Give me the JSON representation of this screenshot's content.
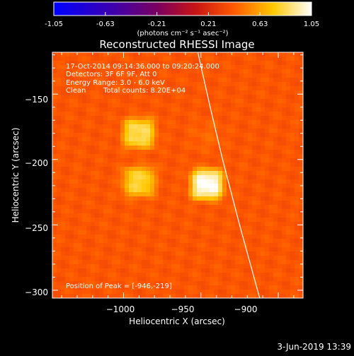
{
  "colorbar": {
    "ticks": [
      "-1.05",
      "-0.63",
      "-0.21",
      "0.21",
      "0.63",
      "1.05"
    ],
    "unit_label": "(photons cm⁻² s⁻¹ asec⁻²)",
    "min": -1.05,
    "max": 1.05
  },
  "image_info": {
    "line1": "17-Oct-2014 09:14:36.000 to 09:20:24.000",
    "line2": "Detectors: 3F 6F 9F, Att 0",
    "line3": "Energy Range: 3.0 - 6.0 keV",
    "line4_left": "Clean",
    "line4_right": "Total counts: 8.20E+04",
    "peak": "Position of Peak = [-946,-219]"
  },
  "footer": {
    "date": "3-Jun-2019 13:39"
  },
  "chart_data": {
    "type": "heatmap",
    "title": "Reconstructed RHESSI Image",
    "xlabel": "Heliocentric X (arcsec)",
    "ylabel": "Heliocentric Y (arcsec)",
    "xlim": [
      -1046,
      -884
    ],
    "ylim": [
      -306,
      -118
    ],
    "xticks": [
      -1000,
      -950,
      -900
    ],
    "yticks": [
      -150,
      -200,
      -250,
      -300
    ],
    "colormap": "hot (rainbow-style: blue-purple-red-orange-yellow-white)",
    "sources": [
      {
        "x": -990,
        "y": -180,
        "peak": 0.85
      },
      {
        "x": -990,
        "y": -217,
        "peak": 0.8
      },
      {
        "x": -946,
        "y": -219,
        "peak": 1.05
      },
      {
        "x": -946,
        "y": -182,
        "peak": 0.45
      }
    ],
    "background_level": 0.4,
    "limb_curve": [
      {
        "x": -952,
        "y": -118
      },
      {
        "x": -944,
        "y": -160
      },
      {
        "x": -936,
        "y": -200
      },
      {
        "x": -925,
        "y": -250
      },
      {
        "x": -912,
        "y": -306
      }
    ]
  }
}
